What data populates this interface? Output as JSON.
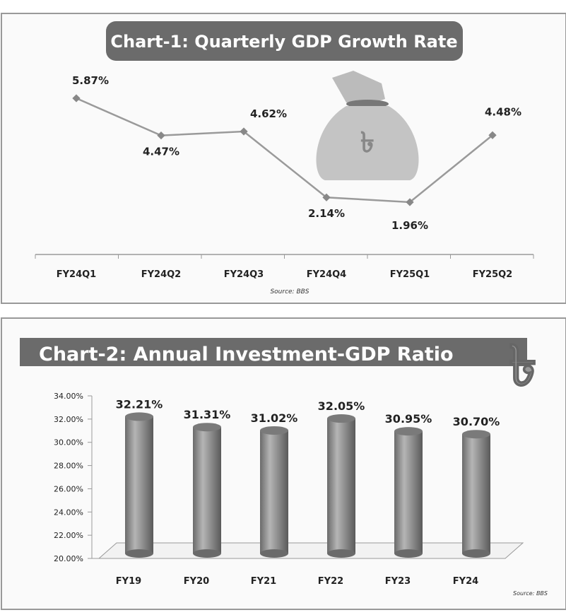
{
  "chart_data": [
    {
      "type": "line",
      "title": "Chart-1: Quarterly GDP Growth Rate",
      "categories": [
        "FY24Q1",
        "FY24Q2",
        "FY24Q3",
        "FY24Q4",
        "FY25Q1",
        "FY25Q2"
      ],
      "values": [
        5.87,
        4.47,
        4.62,
        2.14,
        1.96,
        4.48
      ],
      "labels": [
        "5.87%",
        "4.47%",
        "4.62%",
        "2.14%",
        "1.96%",
        "4.48%"
      ],
      "source": "Source: BBS",
      "xlabel": "",
      "ylabel": ""
    },
    {
      "type": "bar",
      "title": "Chart-2: Annual Investment-GDP Ratio",
      "categories": [
        "FY19",
        "FY20",
        "FY21",
        "FY22",
        "FY23",
        "FY24"
      ],
      "values": [
        32.21,
        31.31,
        31.02,
        32.05,
        30.95,
        30.7
      ],
      "labels": [
        "32.21%",
        "31.31%",
        "31.02%",
        "32.05%",
        "30.95%",
        "30.70%"
      ],
      "yticks": [
        "20.00%",
        "22.00%",
        "24.00%",
        "26.00%",
        "28.00%",
        "30.00%",
        "32.00%",
        "34.00%"
      ],
      "ylim": [
        20,
        34
      ],
      "source": "Source: BBS",
      "xlabel": "",
      "ylabel": ""
    }
  ],
  "colors": {
    "title_bg": "#6b6b6b",
    "line": "#9a9a9a",
    "bar": "#8c8c8c"
  }
}
